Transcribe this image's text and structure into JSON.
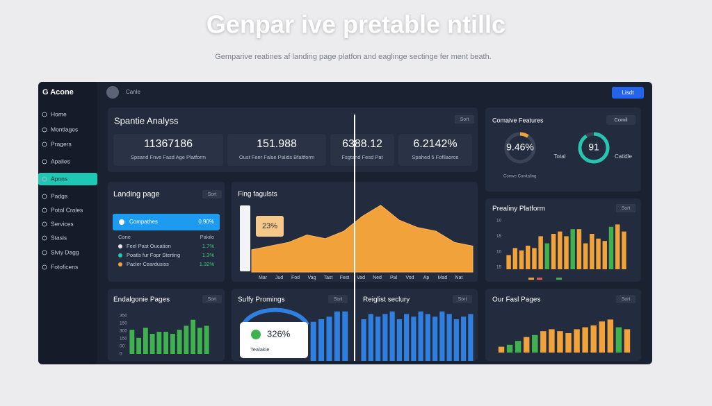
{
  "header": {
    "title": "Genpar ive pretable ntillc",
    "subtitle": "Gemparive reatines af landing page platfon and eaglinge sectinge fer ment beath."
  },
  "app": {
    "logo": "G Acone",
    "user": "Canle",
    "button": "Lisdt"
  },
  "nav": {
    "items": [
      "Home",
      "Montlages",
      "Pragers",
      "Apalies",
      "Apons",
      "Padgs",
      "Potal Crales",
      "Services",
      "Stasls",
      "Slviy Dagg",
      "Fotoficens"
    ],
    "active": 4
  },
  "kpi": {
    "title": "Spantie Analyss",
    "tag": "Sort",
    "items": [
      {
        "value": "11367186",
        "label": "Spsand Fnve Fasd Age Platform"
      },
      {
        "value": "151.988",
        "label": "Oust Feer False Palids Bfaltform"
      },
      {
        "value": "6388.12",
        "label": "Fsgtand Fesd Pat"
      },
      {
        "value": "6.2142%",
        "label": "Spahed 5 Fofllaorce"
      }
    ]
  },
  "features": {
    "title": "Comaive Features",
    "dropdown": "Comil",
    "legend": "Comve Conitaling",
    "side_label": "Catidle",
    "donuts": [
      {
        "value": 9.46,
        "value_label": "9.46%",
        "color": "#f2a23a"
      },
      {
        "value": 91,
        "value_label": "91",
        "color": "#27c4b0",
        "caption": "Total"
      }
    ]
  },
  "landing": {
    "title": "Landing page",
    "tag": "Sort",
    "highlight": {
      "name": "Compathes",
      "value": "0.90%"
    },
    "columns": [
      "Cone",
      "Pakilo"
    ],
    "rows": [
      {
        "name": "Feel Past Oucation",
        "value": "1.7%"
      },
      {
        "name": "Poatls fur Fopr Sterting",
        "value": "1.3%"
      },
      {
        "name": "Pacler Ceardusiss",
        "value": "1.32%"
      }
    ]
  },
  "trend": {
    "type": "area",
    "title": "Fing fagulsts",
    "annotation": "23%",
    "color": "#f2a23a",
    "ylim": [
      0,
      100
    ],
    "categories": [
      "Mar",
      "Jud",
      "Fod",
      "Vag",
      "Tast",
      "Fest",
      "Vad",
      "Ned",
      "Pal",
      "Vod",
      "Ap",
      "Mad",
      "Nat"
    ],
    "values": [
      30,
      35,
      40,
      50,
      45,
      55,
      75,
      90,
      70,
      60,
      55,
      40,
      35
    ]
  },
  "platform": {
    "type": "bar",
    "title": "Prealiny Platform",
    "tag": "Sort",
    "ylabels": [
      "10",
      "15",
      "10",
      "15"
    ],
    "ylim": [
      0,
      100
    ],
    "values": [
      30,
      45,
      40,
      50,
      45,
      70,
      55,
      75,
      80,
      70,
      85,
      85,
      55,
      75,
      65,
      60,
      90,
      95,
      80
    ],
    "colors": [
      "#f2a23a",
      "#f2a23a",
      "#f2a23a",
      "#f2a23a",
      "#f2a23a",
      "#f2a23a",
      "#3fb24f",
      "#f2a23a",
      "#f2a23a",
      "#f2a23a",
      "#3fb24f",
      "#f2a23a",
      "#f2a23a",
      "#f2a23a",
      "#f2a23a",
      "#f2a23a",
      "#3fb24f",
      "#f2a23a",
      "#f2a23a"
    ]
  },
  "endal": {
    "type": "bar",
    "title": "Endalgonie Pages",
    "tag": "Sort",
    "ylabels": [
      "350",
      "150",
      "300",
      "150",
      "00",
      "0"
    ],
    "ylim": [
      0,
      100
    ],
    "color": "#3fb24f",
    "values": [
      60,
      40,
      65,
      50,
      55,
      55,
      50,
      60,
      70,
      85,
      65,
      70
    ]
  },
  "suffy": {
    "type": "bar",
    "title": "Suffy Promings",
    "tag": "Sort",
    "ylim": [
      0,
      100
    ],
    "color": "#2f7fe0",
    "values": [
      75,
      80,
      85,
      95,
      95
    ],
    "card": {
      "value": "326%",
      "label": "Tealakie"
    }
  },
  "reiglist": {
    "type": "bar",
    "title": "Reiglist seclury",
    "tag": "Sort",
    "ylim": [
      0,
      100
    ],
    "color": "#2f7fe0",
    "values": [
      80,
      90,
      85,
      90,
      95,
      80,
      90,
      85,
      95,
      90,
      85,
      95,
      90,
      80,
      85,
      90
    ]
  },
  "ourfasl": {
    "type": "bar",
    "title": "Our Fasl Pages",
    "tag": "Sort",
    "ylim": [
      0,
      100
    ],
    "values": [
      15,
      20,
      30,
      40,
      45,
      55,
      60,
      55,
      50,
      60,
      65,
      70,
      80,
      85,
      65,
      60
    ],
    "colors": [
      "#f2a23a",
      "#3fb24f",
      "#3fb24f",
      "#f2a23a",
      "#3fb24f",
      "#f2a23a",
      "#f2a23a",
      "#f2a23a",
      "#f2a23a",
      "#f2a23a",
      "#f2a23a",
      "#f2a23a",
      "#f2a23a",
      "#f2a23a",
      "#3fb24f",
      "#f2a23a"
    ]
  }
}
